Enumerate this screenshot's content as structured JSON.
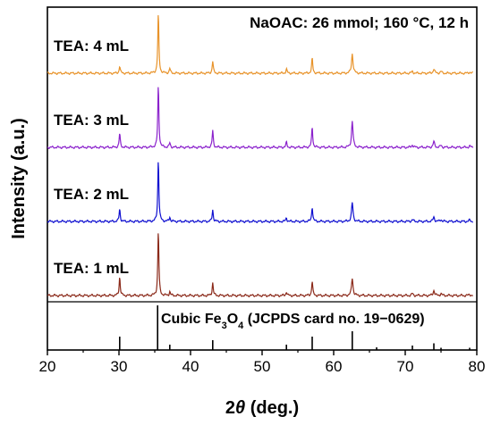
{
  "chart_data": {
    "type": "line",
    "title": "NaOAC: 26 mmol; 160 °C, 12 h",
    "xlabel": "2θ (deg.)",
    "xlabel_parts": {
      "prefix": "2",
      "italic": "θ",
      "suffix": " (deg.)"
    },
    "ylabel": "Intensity (a.u.)",
    "xlim": [
      20,
      80
    ],
    "x_ticks": [
      20,
      30,
      40,
      50,
      60,
      70,
      80
    ],
    "y_ticks_visible": false,
    "stacked_offset": true,
    "legend": "none (series labels placed on the left above each trace)",
    "series": [
      {
        "name": "TEA: 4 mL",
        "color": "#E8932A",
        "peaks": [
          {
            "x": 30.1,
            "y": 0.12
          },
          {
            "x": 35.5,
            "y": 1.0
          },
          {
            "x": 37.1,
            "y": 0.08
          },
          {
            "x": 43.1,
            "y": 0.2
          },
          {
            "x": 53.4,
            "y": 0.07
          },
          {
            "x": 57.0,
            "y": 0.25
          },
          {
            "x": 62.6,
            "y": 0.33
          },
          {
            "x": 71.0,
            "y": 0.03
          },
          {
            "x": 74.0,
            "y": 0.07
          },
          {
            "x": 75.0,
            "y": 0.03
          },
          {
            "x": 79.0,
            "y": 0.02
          }
        ]
      },
      {
        "name": "TEA: 3 mL",
        "color": "#8B22CC",
        "peaks": [
          {
            "x": 30.1,
            "y": 0.22
          },
          {
            "x": 35.5,
            "y": 1.0
          },
          {
            "x": 37.1,
            "y": 0.07
          },
          {
            "x": 43.1,
            "y": 0.27
          },
          {
            "x": 53.4,
            "y": 0.08
          },
          {
            "x": 57.0,
            "y": 0.33
          },
          {
            "x": 62.6,
            "y": 0.42
          },
          {
            "x": 71.0,
            "y": 0.04
          },
          {
            "x": 74.0,
            "y": 0.09
          },
          {
            "x": 75.0,
            "y": 0.03
          },
          {
            "x": 79.0,
            "y": 0.02
          }
        ]
      },
      {
        "name": "TEA: 2 mL",
        "color": "#1010D0",
        "peaks": [
          {
            "x": 30.1,
            "y": 0.2
          },
          {
            "x": 35.5,
            "y": 1.0
          },
          {
            "x": 37.1,
            "y": 0.07
          },
          {
            "x": 43.1,
            "y": 0.19
          },
          {
            "x": 53.4,
            "y": 0.06
          },
          {
            "x": 57.0,
            "y": 0.24
          },
          {
            "x": 62.6,
            "y": 0.3
          },
          {
            "x": 71.0,
            "y": 0.03
          },
          {
            "x": 74.0,
            "y": 0.07
          },
          {
            "x": 75.0,
            "y": 0.03
          },
          {
            "x": 79.0,
            "y": 0.02
          }
        ]
      },
      {
        "name": "TEA: 1 mL",
        "color": "#8B2A1A",
        "peaks": [
          {
            "x": 30.1,
            "y": 0.29
          },
          {
            "x": 35.5,
            "y": 1.0
          },
          {
            "x": 37.1,
            "y": 0.06
          },
          {
            "x": 43.1,
            "y": 0.2
          },
          {
            "x": 53.4,
            "y": 0.06
          },
          {
            "x": 57.0,
            "y": 0.22
          },
          {
            "x": 62.6,
            "y": 0.27
          },
          {
            "x": 71.0,
            "y": 0.03
          },
          {
            "x": 74.0,
            "y": 0.08
          },
          {
            "x": 75.0,
            "y": 0.03
          },
          {
            "x": 79.0,
            "y": 0.02
          }
        ]
      }
    ],
    "reference": {
      "label": "Cubic Fe3O4 (JCPDS card no. 19−0629)",
      "label_parts": {
        "a": "Cubic Fe",
        "sub1": "3",
        "b": "O",
        "sub2": "4",
        "c": " (JCPDS card no. 19−0629)"
      },
      "lines": [
        {
          "x": 30.1,
          "y": 0.3
        },
        {
          "x": 35.4,
          "y": 1.0
        },
        {
          "x": 37.1,
          "y": 0.12
        },
        {
          "x": 43.1,
          "y": 0.22
        },
        {
          "x": 53.4,
          "y": 0.12
        },
        {
          "x": 57.0,
          "y": 0.3
        },
        {
          "x": 62.6,
          "y": 0.42
        },
        {
          "x": 66.0,
          "y": 0.06
        },
        {
          "x": 71.0,
          "y": 0.1
        },
        {
          "x": 74.0,
          "y": 0.15
        },
        {
          "x": 75.0,
          "y": 0.05
        },
        {
          "x": 79.0,
          "y": 0.05
        }
      ]
    }
  }
}
